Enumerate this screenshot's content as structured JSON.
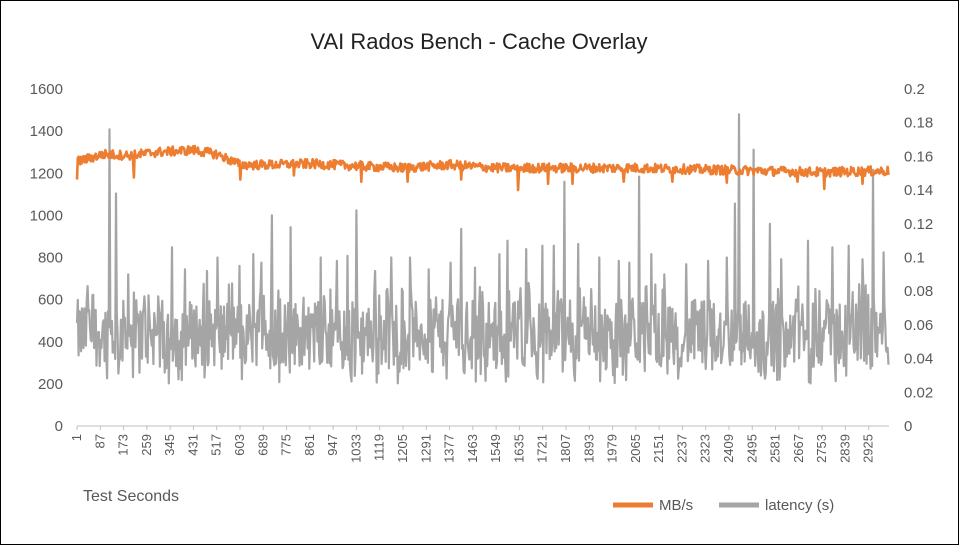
{
  "chart_data": {
    "type": "line",
    "title": "VAI Rados Bench - Cache Overlay",
    "xlabel": "Test Seconds",
    "x_range": [
      1,
      3000
    ],
    "x_tick_labels": [
      "1",
      "87",
      "173",
      "259",
      "345",
      "431",
      "517",
      "603",
      "689",
      "775",
      "861",
      "947",
      "1033",
      "1119",
      "1205",
      "1291",
      "1377",
      "1463",
      "1549",
      "1635",
      "1721",
      "1807",
      "1893",
      "1979",
      "2065",
      "2151",
      "2237",
      "2323",
      "2409",
      "2495",
      "2581",
      "2667",
      "2753",
      "2839",
      "2925"
    ],
    "y_left": {
      "range": [
        0,
        1600
      ],
      "ticks": [
        "0",
        "200",
        "400",
        "600",
        "800",
        "1000",
        "1200",
        "1400",
        "1600"
      ]
    },
    "y_right": {
      "range": [
        0,
        0.2
      ],
      "ticks": [
        "0",
        "0.02",
        "0.04",
        "0.06",
        "0.08",
        "0.1",
        "0.12",
        "0.14",
        "0.16",
        "0.18",
        "0.2"
      ]
    },
    "grid": "none",
    "legend_position": "bottom-right",
    "series": [
      {
        "name": "MB/s",
        "axis": "left",
        "color": "#ED7D31",
        "profile": [
          [
            1,
            1255
          ],
          [
            100,
            1290
          ],
          [
            200,
            1285
          ],
          [
            300,
            1300
          ],
          [
            431,
            1310
          ],
          [
            520,
            1290
          ],
          [
            603,
            1240
          ],
          [
            700,
            1240
          ],
          [
            861,
            1245
          ],
          [
            1033,
            1235
          ],
          [
            1205,
            1225
          ],
          [
            1377,
            1240
          ],
          [
            1549,
            1225
          ],
          [
            1721,
            1225
          ],
          [
            1893,
            1225
          ],
          [
            2065,
            1225
          ],
          [
            2237,
            1220
          ],
          [
            2409,
            1215
          ],
          [
            2581,
            1210
          ],
          [
            2753,
            1205
          ],
          [
            2925,
            1210
          ],
          [
            3000,
            1210
          ]
        ],
        "band": 45,
        "dips": [
          [
            1,
            1170
          ],
          [
            210,
            1180
          ],
          [
            603,
            1170
          ],
          [
            800,
            1190
          ],
          [
            1050,
            1160
          ],
          [
            1220,
            1160
          ],
          [
            1420,
            1170
          ],
          [
            1630,
            1120
          ],
          [
            1740,
            1150
          ],
          [
            1830,
            1150
          ],
          [
            2020,
            1160
          ],
          [
            2200,
            1160
          ],
          [
            2400,
            1155
          ],
          [
            2660,
            1160
          ],
          [
            2760,
            1125
          ],
          [
            2900,
            1150
          ]
        ]
      },
      {
        "name": "latency (s)",
        "axis": "right",
        "color": "#A5A5A5",
        "baseline": [
          0.035,
          0.075
        ],
        "peaks": [
          [
            40,
            0.083
          ],
          [
            120,
            0.176
          ],
          [
            143,
            0.138
          ],
          [
            190,
            0.09
          ],
          [
            250,
            0.077
          ],
          [
            300,
            0.077
          ],
          [
            350,
            0.106
          ],
          [
            400,
            0.093
          ],
          [
            480,
            0.092
          ],
          [
            520,
            0.1
          ],
          [
            560,
            0.084
          ],
          [
            600,
            0.095
          ],
          [
            650,
            0.102
          ],
          [
            680,
            0.097
          ],
          [
            720,
            0.125
          ],
          [
            790,
            0.118
          ],
          [
            900,
            0.1
          ],
          [
            960,
            0.098
          ],
          [
            1000,
            0.101
          ],
          [
            1033,
            0.128
          ],
          [
            1100,
            0.092
          ],
          [
            1160,
            0.1
          ],
          [
            1230,
            0.1
          ],
          [
            1300,
            0.093
          ],
          [
            1380,
            0.097
          ],
          [
            1420,
            0.117
          ],
          [
            1470,
            0.094
          ],
          [
            1560,
            0.102
          ],
          [
            1590,
            0.11
          ],
          [
            1660,
            0.105
          ],
          [
            1720,
            0.107
          ],
          [
            1760,
            0.107
          ],
          [
            1800,
            0.145
          ],
          [
            1850,
            0.108
          ],
          [
            1930,
            0.1
          ],
          [
            2000,
            0.098
          ],
          [
            2040,
            0.097
          ],
          [
            2075,
            0.148
          ],
          [
            2120,
            0.102
          ],
          [
            2170,
            0.09
          ],
          [
            2250,
            0.096
          ],
          [
            2330,
            0.098
          ],
          [
            2400,
            0.1
          ],
          [
            2430,
            0.132
          ],
          [
            2445,
            0.185
          ],
          [
            2500,
            0.164
          ],
          [
            2560,
            0.12
          ],
          [
            2600,
            0.099
          ],
          [
            2700,
            0.11
          ],
          [
            2790,
            0.106
          ],
          [
            2850,
            0.107
          ],
          [
            2900,
            0.099
          ],
          [
            2940,
            0.152
          ],
          [
            2980,
            0.103
          ]
        ]
      }
    ]
  }
}
